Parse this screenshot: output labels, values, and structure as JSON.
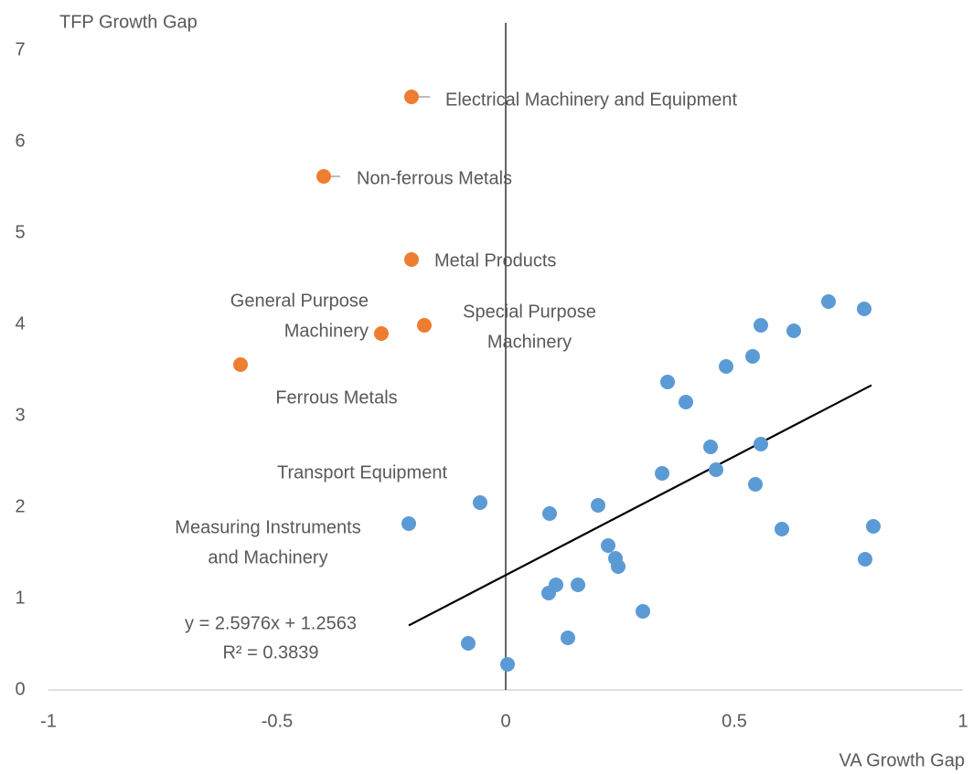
{
  "chart_data": {
    "type": "scatter",
    "x_label": "VA Growth Gap",
    "y_label": "TFP Growth Gap",
    "xlim": [
      -1,
      1
    ],
    "xticks": [
      -1,
      -0.5,
      0,
      0.5,
      1
    ],
    "ylim": [
      0,
      7
    ],
    "yticks": [
      0,
      1,
      2,
      3,
      4,
      5,
      6,
      7
    ],
    "grid": false,
    "series": [
      {
        "color": "#ED7D31",
        "x": [
          -0.206,
          -0.398,
          -0.206,
          -0.272,
          -0.178,
          -0.58
        ],
        "y": [
          6.49,
          5.62,
          4.71,
          3.9,
          3.99,
          3.56
        ]
      },
      {
        "color": "#5B9BD5",
        "x": [
          -0.212,
          -0.056,
          -0.082,
          0.004,
          0.096,
          0.094,
          0.11,
          0.136,
          0.158,
          0.202,
          0.224,
          0.24,
          0.246,
          0.3,
          0.342,
          0.354,
          0.394,
          0.448,
          0.46,
          0.482,
          0.54,
          0.546,
          0.558,
          0.558,
          0.604,
          0.63,
          0.706,
          0.784,
          0.786,
          0.804
        ],
        "y": [
          1.82,
          2.05,
          0.51,
          0.28,
          1.93,
          1.06,
          1.15,
          0.57,
          1.15,
          2.02,
          1.58,
          1.44,
          1.35,
          0.86,
          2.37,
          3.37,
          3.15,
          2.66,
          2.41,
          3.54,
          3.65,
          2.25,
          2.69,
          3.99,
          1.76,
          3.93,
          4.25,
          4.17,
          1.43,
          1.79
        ]
      }
    ],
    "annotations": [
      {
        "lines": [
          "Electrical Machinery and Equipment"
        ]
      },
      {
        "lines": [
          "Non-ferrous Metals"
        ]
      },
      {
        "lines": [
          "Metal Products"
        ]
      },
      {
        "lines": [
          "General Purpose",
          "Machinery"
        ]
      },
      {
        "lines": [
          "Special Purpose",
          "Machinery"
        ]
      },
      {
        "lines": [
          "Ferrous Metals"
        ]
      },
      {
        "lines": [
          "Transport Equipment"
        ]
      },
      {
        "lines": [
          "Measuring Instruments",
          "and Machinery"
        ]
      }
    ],
    "trendline": {
      "slope": 2.5976,
      "intercept": 1.2563,
      "x_range": [
        -0.212,
        0.8
      ],
      "color": "#000000",
      "label": [
        "y = 2.5976x + 1.2563",
        "R² = 0.3839"
      ]
    }
  }
}
